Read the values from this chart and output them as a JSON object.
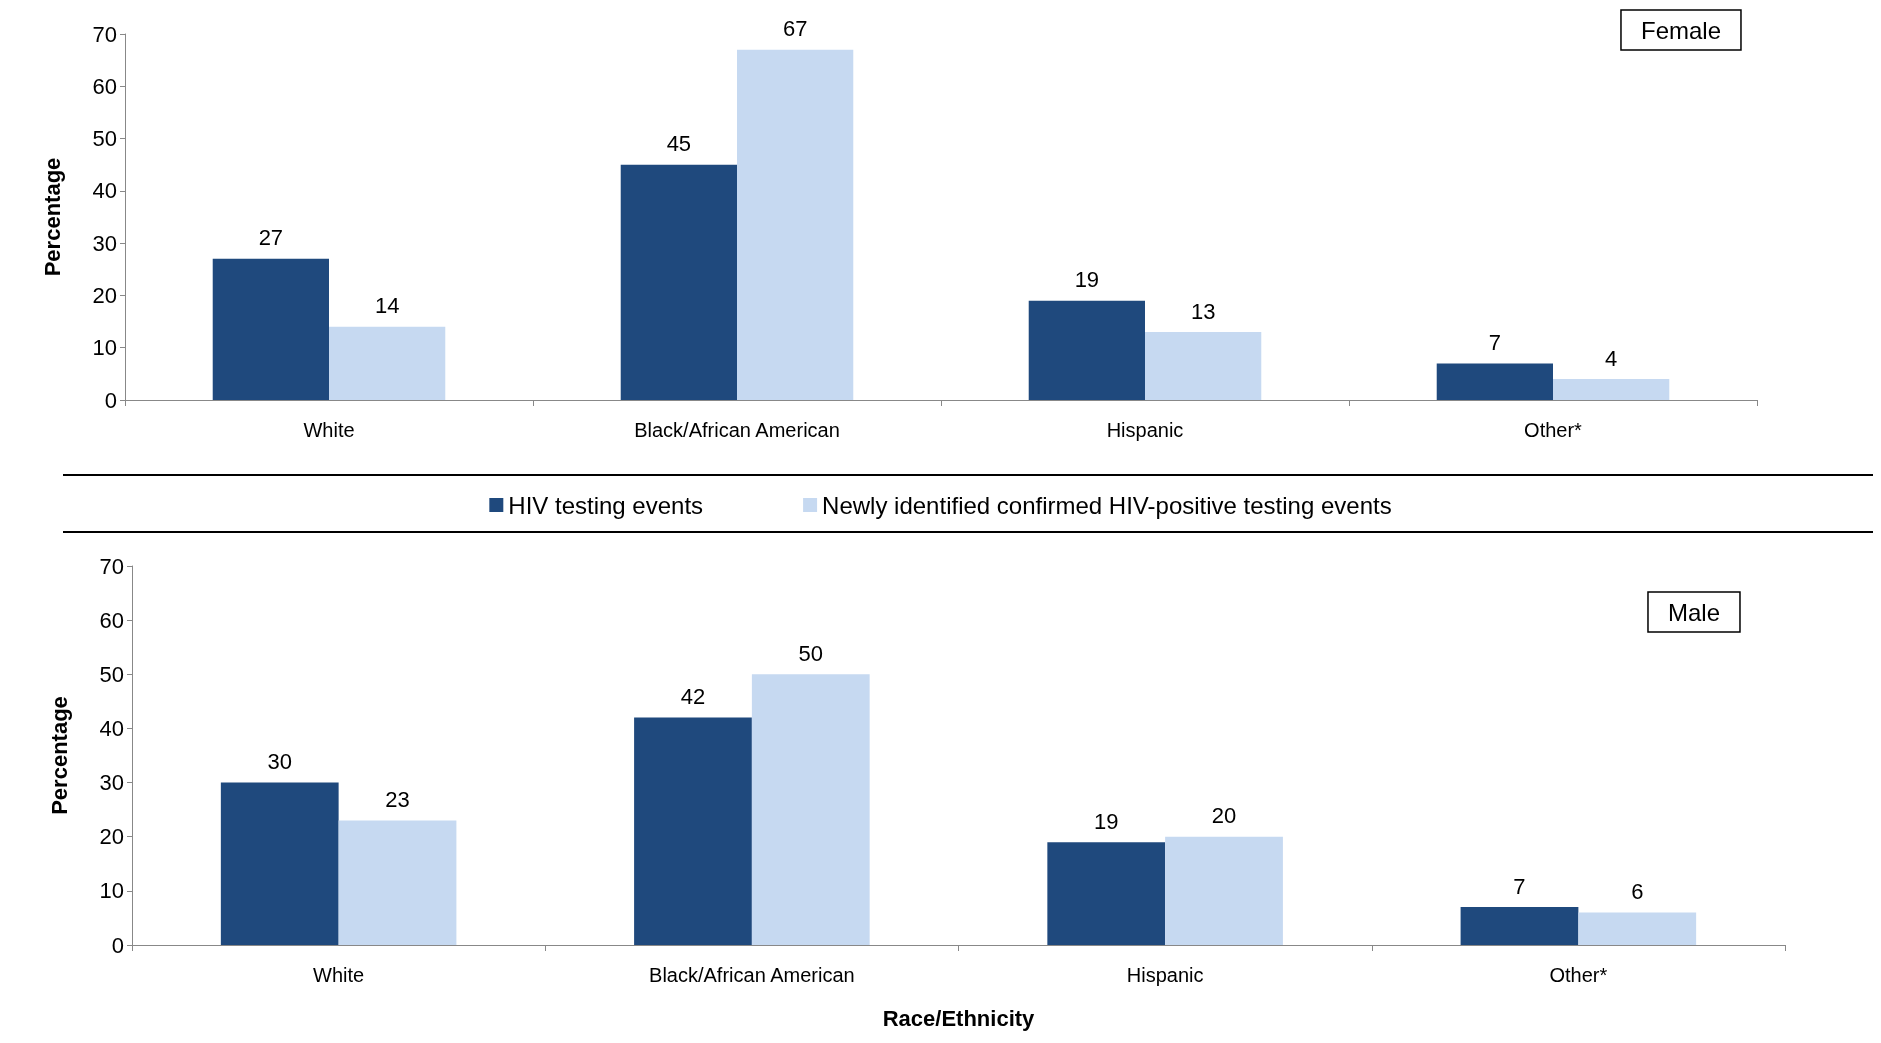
{
  "chart_data": [
    {
      "type": "bar",
      "title": "Female",
      "ylabel": "Percentage",
      "categories": [
        "White",
        "Black/African American",
        "Hispanic",
        "Other*"
      ],
      "series": [
        {
          "name": "HIV testing events",
          "color": "#1f497d",
          "values": [
            27,
            45,
            19,
            7
          ]
        },
        {
          "name": "Newly identified confirmed HIV-positive testing events",
          "color": "#c6d9f1",
          "values": [
            14,
            67,
            13,
            4
          ]
        }
      ],
      "ylim": [
        0,
        70
      ],
      "yticks": [
        0,
        10,
        20,
        30,
        40,
        50,
        60,
        70
      ],
      "data_labels": true,
      "legend": "bottom",
      "grid": false
    },
    {
      "type": "bar",
      "title": "Male",
      "ylabel": "Percentage",
      "xlabel": "Race/Ethnicity",
      "categories": [
        "White",
        "Black/African American",
        "Hispanic",
        "Other*"
      ],
      "series": [
        {
          "color": "#1f497d",
          "values": [
            30,
            42,
            19,
            7
          ]
        },
        {
          "color": "#c6d9f1",
          "values": [
            23,
            50,
            20,
            6
          ]
        }
      ],
      "ylim": [
        0,
        70
      ],
      "yticks": [
        0,
        10,
        20,
        30,
        40,
        50,
        60,
        70
      ],
      "data_labels": true,
      "grid": false
    }
  ]
}
